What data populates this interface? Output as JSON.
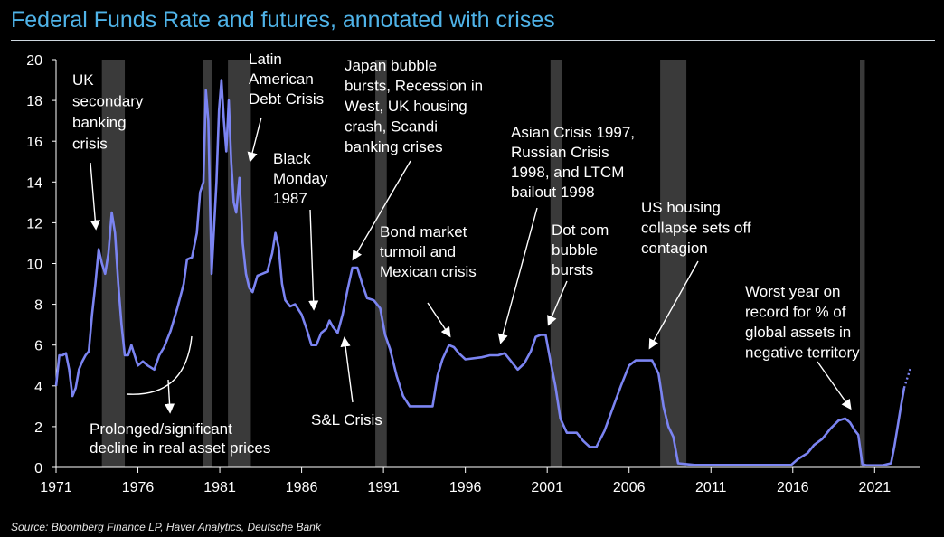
{
  "chart_data": {
    "type": "line",
    "title": "Federal Funds Rate and futures, annotated with crises",
    "source": "Source: Bloomberg Finance LP, Haver Analytics, Deutsche Bank",
    "xlim": [
      1971,
      2023.8
    ],
    "ylim": [
      0,
      20
    ],
    "x_ticks": [
      1971,
      1976,
      1981,
      1986,
      1991,
      1996,
      2001,
      2006,
      2011,
      2016,
      2021
    ],
    "y_ticks": [
      0,
      2,
      4,
      6,
      8,
      10,
      12,
      14,
      16,
      18,
      20
    ],
    "grid": false,
    "colors": {
      "line": "#7b84f2",
      "crisis_band": "#3a3a3a",
      "text": "#ffffff",
      "title": "#4fb3e8"
    },
    "crisis_bands": [
      [
        1973.8,
        1975.2
      ],
      [
        1980.0,
        1980.5
      ],
      [
        1981.5,
        1982.9
      ],
      [
        1990.5,
        1991.2
      ],
      [
        2001.2,
        2001.9
      ],
      [
        2007.9,
        2009.5
      ],
      [
        2020.1,
        2020.4
      ]
    ],
    "series": [
      {
        "x": [
          1971.0,
          1971.2,
          1971.4,
          1971.6,
          1971.8,
          1972.0,
          1972.2,
          1972.4,
          1972.6,
          1972.8,
          1973.0,
          1973.2,
          1973.4,
          1973.6,
          1973.8,
          1974.0,
          1974.2,
          1974.4,
          1974.6,
          1974.8,
          1975.0,
          1975.2,
          1975.4,
          1975.6,
          1975.8,
          1976.0,
          1976.3,
          1976.6,
          1977.0,
          1977.3,
          1977.6,
          1978.0,
          1978.4,
          1978.8,
          1979.0,
          1979.3,
          1979.6,
          1979.8,
          1980.0,
          1980.15,
          1980.3,
          1980.5,
          1980.6,
          1980.8,
          1980.95,
          1981.1,
          1981.25,
          1981.4,
          1981.55,
          1981.7,
          1981.85,
          1982.0,
          1982.2,
          1982.4,
          1982.6,
          1982.8,
          1983.0,
          1983.3,
          1983.6,
          1983.9,
          1984.2,
          1984.4,
          1984.6,
          1984.8,
          1985.0,
          1985.3,
          1985.6,
          1986.0,
          1986.3,
          1986.6,
          1986.9,
          1987.2,
          1987.5,
          1987.7,
          1987.9,
          1988.2,
          1988.5,
          1988.8,
          1989.1,
          1989.4,
          1989.7,
          1990.0,
          1990.4,
          1990.8,
          1991.1,
          1991.4,
          1991.8,
          1992.2,
          1992.6,
          1993.0,
          1993.5,
          1994.0,
          1994.3,
          1994.6,
          1995.0,
          1995.3,
          1995.6,
          1996.0,
          1997.0,
          1997.5,
          1998.0,
          1998.4,
          1998.8,
          1999.2,
          1999.6,
          2000.0,
          2000.3,
          2000.6,
          2000.9,
          2001.2,
          2001.5,
          2001.8,
          2002.2,
          2002.8,
          2003.2,
          2003.6,
          2004.0,
          2004.5,
          2005.0,
          2005.5,
          2006.0,
          2006.4,
          2006.9,
          2007.4,
          2007.8,
          2008.1,
          2008.4,
          2008.7,
          2009.0,
          2010.0,
          2012.0,
          2014.0,
          2015.9,
          2016.3,
          2016.9,
          2017.3,
          2017.8,
          2018.3,
          2018.8,
          2019.2,
          2019.5,
          2019.8,
          2020.0,
          2020.25,
          2020.5,
          2021.0,
          2021.5,
          2022.0,
          2022.2,
          2022.4,
          2022.6,
          2022.8,
          2023.0,
          2023.2
        ],
        "y": [
          4.0,
          5.5,
          5.5,
          5.6,
          4.8,
          3.5,
          3.9,
          4.8,
          5.2,
          5.5,
          5.7,
          7.5,
          9.0,
          10.7,
          10.0,
          9.5,
          10.5,
          12.5,
          11.5,
          9.0,
          7.0,
          5.5,
          5.5,
          6.0,
          5.5,
          5.0,
          5.2,
          5.0,
          4.8,
          5.5,
          5.9,
          6.7,
          7.8,
          9.0,
          10.2,
          10.3,
          11.5,
          13.5,
          14.0,
          18.5,
          17.0,
          9.5,
          11.0,
          14.0,
          17.5,
          19.0,
          17.0,
          15.5,
          18.0,
          15.0,
          13.0,
          12.5,
          14.2,
          11.0,
          9.5,
          8.8,
          8.6,
          9.4,
          9.5,
          9.6,
          10.5,
          11.5,
          10.8,
          9.0,
          8.2,
          7.9,
          8.0,
          7.5,
          6.8,
          6.0,
          6.0,
          6.6,
          6.8,
          7.2,
          6.9,
          6.6,
          7.5,
          8.7,
          9.8,
          9.8,
          9.0,
          8.3,
          8.2,
          7.8,
          6.5,
          5.8,
          4.5,
          3.5,
          3.0,
          3.0,
          3.0,
          3.0,
          4.5,
          5.3,
          6.0,
          5.9,
          5.6,
          5.3,
          5.4,
          5.5,
          5.5,
          5.6,
          5.2,
          4.8,
          5.1,
          5.7,
          6.4,
          6.5,
          6.5,
          5.2,
          4.0,
          2.4,
          1.7,
          1.7,
          1.3,
          1.0,
          1.0,
          1.8,
          2.9,
          4.0,
          5.0,
          5.25,
          5.25,
          5.25,
          4.6,
          3.0,
          2.0,
          1.5,
          0.2,
          0.12,
          0.12,
          0.12,
          0.12,
          0.4,
          0.7,
          1.1,
          1.4,
          1.9,
          2.3,
          2.4,
          2.2,
          1.8,
          1.6,
          0.15,
          0.1,
          0.1,
          0.1,
          0.2,
          1.0,
          2.0,
          3.0,
          3.9,
          4.4,
          4.9
        ]
      }
    ],
    "annotations": [
      {
        "label": "uk",
        "lines": [
          "UK",
          "secondary",
          "banking",
          "crisis"
        ]
      },
      {
        "label": "latam",
        "lines": [
          "Latin",
          "American",
          "Debt Crisis"
        ]
      },
      {
        "label": "black-monday",
        "lines": [
          "Black",
          "Monday",
          "1987"
        ]
      },
      {
        "label": "japan",
        "lines": [
          "Japan bubble",
          "bursts, Recession in",
          "West, UK housing",
          "crash, Scandi",
          "banking crises"
        ]
      },
      {
        "label": "bond",
        "lines": [
          "Bond market",
          "turmoil and",
          "Mexican crisis"
        ]
      },
      {
        "label": "asian",
        "lines": [
          "Asian Crisis 1997,",
          "Russian Crisis",
          "1998, and LTCM",
          "bailout 1998"
        ]
      },
      {
        "label": "dotcom",
        "lines": [
          "Dot com",
          "bubble",
          "bursts"
        ]
      },
      {
        "label": "us-housing",
        "lines": [
          "US housing",
          "collapse sets off",
          "contagion"
        ]
      },
      {
        "label": "worst-year",
        "lines": [
          "Worst year on",
          "record for % of",
          "global assets in",
          "negative territory"
        ]
      },
      {
        "label": "sl",
        "lines": [
          "S&L Crisis"
        ]
      },
      {
        "label": "prolonged",
        "lines": [
          "Prolonged/significant",
          "decline in real asset prices"
        ]
      }
    ]
  }
}
